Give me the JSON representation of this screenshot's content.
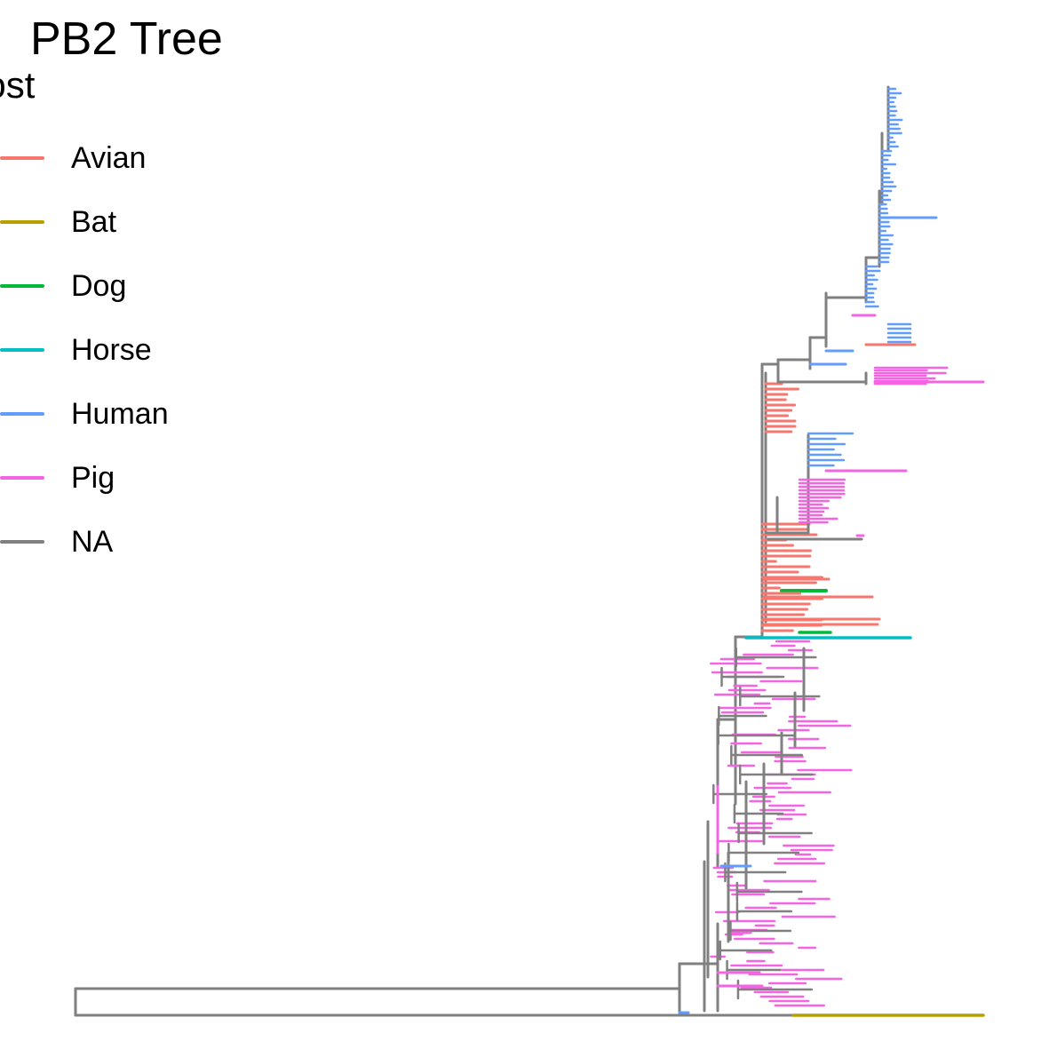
{
  "chart_data": {
    "type": "phylogenetic-tree",
    "title": "PB2 Tree",
    "legend": {
      "title": "host",
      "position": "left",
      "entries": [
        {
          "label": "Avian",
          "color": "#F8766D"
        },
        {
          "label": "Bat",
          "color": "#B79F00"
        },
        {
          "label": "Dog",
          "color": "#00BA38"
        },
        {
          "label": "Horse",
          "color": "#00BFC4"
        },
        {
          "label": "Human",
          "color": "#619CFF"
        },
        {
          "label": "Pig",
          "color": "#F564E3"
        },
        {
          "label": "NA",
          "color": "#808080"
        }
      ]
    },
    "axes": "none",
    "clades": [
      {
        "host": "Human",
        "description": "upper clade of human-host tips"
      },
      {
        "host": "Pig",
        "description": "pig-host clades"
      },
      {
        "host": "Avian",
        "description": "avian-host tips"
      },
      {
        "host": "Dog",
        "description": "dog-host branch"
      },
      {
        "host": "Horse",
        "description": "horse-host long branch"
      },
      {
        "host": "Bat",
        "description": "bat-host outgroup branch"
      }
    ]
  }
}
